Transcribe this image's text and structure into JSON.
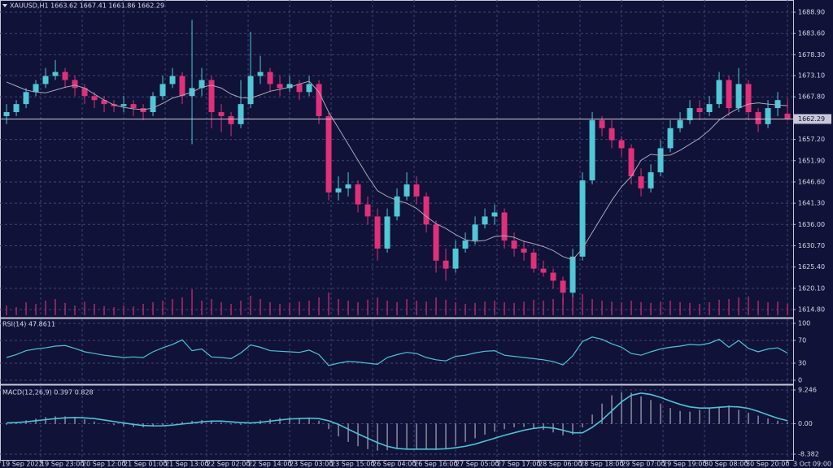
{
  "chart_data": [
    {
      "type": "candlestick",
      "title": "XAUUSD,H1  1663.62 1667.41 1661.86 1662.29",
      "up_color": "#52c7d6",
      "down_color": "#e0307a",
      "ma_color": "#a8a8b8",
      "volume_color": "#b0286a",
      "grid": true,
      "xlim": [
        -0.67,
        80.58
      ],
      "ylim": [
        1612.98,
        1691.94
      ],
      "vlim": [
        0,
        100
      ],
      "xticks": [
        {
          "value": -0.67,
          "label": "19 Sep 2022"
        },
        {
          "value": 3.5,
          "label": "19 Sep 23:00"
        },
        {
          "value": 7.75,
          "label": "20 Sep 12:00"
        },
        {
          "value": 12,
          "label": "21 Sep 01:00"
        },
        {
          "value": 16.25,
          "label": "21 Sep 13:00"
        },
        {
          "value": 20.5,
          "label": "22 Sep 02:00"
        },
        {
          "value": 24.75,
          "label": "22 Sep 14:00"
        },
        {
          "value": 29,
          "label": "23 Sep 03:00"
        },
        {
          "value": 33.25,
          "label": "23 Sep 15:00"
        },
        {
          "value": 37.5,
          "label": "26 Sep 04:00"
        },
        {
          "value": 41.75,
          "label": "26 Sep 16:00"
        },
        {
          "value": 46,
          "label": "27 Sep 05:00"
        },
        {
          "value": 50.25,
          "label": "27 Sep 17:00"
        },
        {
          "value": 54.5,
          "label": "28 Sep 06:00"
        },
        {
          "value": 58.75,
          "label": "28 Sep 18:00"
        },
        {
          "value": 63,
          "label": "29 Sep 07:00"
        },
        {
          "value": 67.25,
          "label": "29 Sep 19:00"
        },
        {
          "value": 71.5,
          "label": "30 Sep 08:00"
        },
        {
          "value": 75.75,
          "label": "30 Sep 20:00"
        },
        {
          "value": 80,
          "label": "3 Oct 09:00"
        }
      ],
      "yticks": [
        {
          "value": 1688.9,
          "label": "1688.90"
        },
        {
          "value": 1683.6,
          "label": "1683.60"
        },
        {
          "value": 1678.3,
          "label": "1678.30"
        },
        {
          "value": 1673.1,
          "label": "1673.10"
        },
        {
          "value": 1667.8,
          "label": "1667.80"
        },
        {
          "value": 1657.2,
          "label": "1657.20"
        },
        {
          "value": 1651.9,
          "label": "1651.90"
        },
        {
          "value": 1646.6,
          "label": "1646.60"
        },
        {
          "value": 1641.3,
          "label": "1641.30"
        },
        {
          "value": 1636,
          "label": "1636.00"
        },
        {
          "value": 1630.7,
          "label": "1630.70"
        },
        {
          "value": 1625.4,
          "label": "1625.40"
        },
        {
          "value": 1620.1,
          "label": "1620.10"
        },
        {
          "value": 1614.8,
          "label": "1614.80"
        }
      ],
      "candles": [
        [
          1663,
          1666,
          1661,
          1664
        ],
        [
          1664,
          1667,
          1663,
          1666
        ],
        [
          1666,
          1670,
          1665,
          1669
        ],
        [
          1669,
          1672,
          1668,
          1671
        ],
        [
          1671,
          1675,
          1670,
          1673
        ],
        [
          1673,
          1677,
          1672,
          1674
        ],
        [
          1674,
          1675,
          1670,
          1672
        ],
        [
          1672,
          1673,
          1668,
          1670
        ],
        [
          1670,
          1671,
          1666,
          1668
        ],
        [
          1668,
          1669,
          1665,
          1667
        ],
        [
          1667,
          1668,
          1664,
          1666
        ],
        [
          1666,
          1667,
          1664,
          1665.5
        ],
        [
          1665.5,
          1668,
          1664,
          1666
        ],
        [
          1666,
          1667,
          1663,
          1665
        ],
        [
          1665,
          1666,
          1662,
          1664
        ],
        [
          1664,
          1669,
          1663,
          1668
        ],
        [
          1668,
          1673,
          1667,
          1671
        ],
        [
          1671,
          1675,
          1670,
          1673
        ],
        [
          1673,
          1674,
          1666,
          1668
        ],
        [
          1668,
          1687,
          1656,
          1670
        ],
        [
          1670,
          1675,
          1668,
          1672
        ],
        [
          1672,
          1673,
          1660,
          1664
        ],
        [
          1664,
          1666,
          1659,
          1663
        ],
        [
          1663,
          1664,
          1658,
          1661
        ],
        [
          1661,
          1672,
          1660,
          1666
        ],
        [
          1666,
          1684,
          1665,
          1673
        ],
        [
          1673,
          1678,
          1671,
          1674
        ],
        [
          1674,
          1675,
          1669,
          1671
        ],
        [
          1671,
          1673,
          1668,
          1670
        ],
        [
          1670,
          1673,
          1669,
          1671
        ],
        [
          1671,
          1672,
          1667,
          1669
        ],
        [
          1669,
          1673,
          1668,
          1671
        ],
        [
          1671,
          1672,
          1661,
          1663
        ],
        [
          1663,
          1664,
          1642,
          1644
        ],
        [
          1644,
          1648,
          1642,
          1645
        ],
        [
          1645,
          1649,
          1643,
          1646
        ],
        [
          1646,
          1647,
          1639,
          1641
        ],
        [
          1641,
          1643,
          1636,
          1638
        ],
        [
          1638,
          1640,
          1627,
          1630
        ],
        [
          1630,
          1640,
          1629,
          1638
        ],
        [
          1638,
          1645,
          1637,
          1643
        ],
        [
          1643,
          1649,
          1642,
          1646
        ],
        [
          1646,
          1648,
          1641,
          1643
        ],
        [
          1643,
          1644,
          1634,
          1636
        ],
        [
          1636,
          1637,
          1624,
          1627
        ],
        [
          1627,
          1630,
          1622,
          1625
        ],
        [
          1625,
          1632,
          1624,
          1630
        ],
        [
          1630,
          1634,
          1629,
          1632
        ],
        [
          1632,
          1638,
          1631,
          1636
        ],
        [
          1636,
          1640,
          1635,
          1638
        ],
        [
          1638,
          1641,
          1636,
          1639
        ],
        [
          1639,
          1640,
          1630,
          1632
        ],
        [
          1632,
          1634,
          1628,
          1630
        ],
        [
          1630,
          1632,
          1627,
          1629
        ],
        [
          1629,
          1630,
          1624,
          1625
        ],
        [
          1625,
          1627,
          1623,
          1624
        ],
        [
          1624,
          1625,
          1620,
          1622
        ],
        [
          1622,
          1623,
          1616,
          1619
        ],
        [
          1619,
          1630,
          1618,
          1628
        ],
        [
          1628,
          1649,
          1627,
          1647
        ],
        [
          1647,
          1664,
          1646,
          1662
        ],
        [
          1662,
          1663,
          1658,
          1660
        ],
        [
          1660,
          1662,
          1655,
          1657
        ],
        [
          1657,
          1658,
          1653,
          1655
        ],
        [
          1655,
          1656,
          1646,
          1648
        ],
        [
          1648,
          1650,
          1643,
          1645
        ],
        [
          1645,
          1651,
          1644,
          1649
        ],
        [
          1649,
          1657,
          1648,
          1655
        ],
        [
          1655,
          1662,
          1654,
          1660
        ],
        [
          1660,
          1664,
          1659,
          1662
        ],
        [
          1662,
          1667,
          1661,
          1665
        ],
        [
          1665,
          1667,
          1662,
          1664
        ],
        [
          1664,
          1668,
          1663,
          1666
        ],
        [
          1666,
          1674,
          1665,
          1672
        ],
        [
          1672,
          1673,
          1663,
          1665
        ],
        [
          1665,
          1675,
          1664,
          1671
        ],
        [
          1671,
          1672,
          1662,
          1664
        ],
        [
          1664,
          1665,
          1659,
          1661
        ],
        [
          1661,
          1667,
          1660,
          1665
        ],
        [
          1665,
          1669,
          1663,
          1667
        ],
        [
          1663.62,
          1667.41,
          1661.86,
          1662.29
        ]
      ],
      "ma": [
        1671.5,
        1670.5,
        1669.5,
        1669,
        1668.8,
        1669.5,
        1670.2,
        1670.7,
        1670,
        1668.5,
        1667,
        1665.8,
        1665.2,
        1664.8,
        1664.6,
        1665,
        1666.2,
        1667.5,
        1668.2,
        1669,
        1670.2,
        1670.7,
        1670,
        1668.5,
        1667.6,
        1667.5,
        1668.3,
        1669.2,
        1669.7,
        1670.2,
        1671,
        1671.7,
        1669,
        1664,
        1660,
        1656,
        1652,
        1648,
        1644.4,
        1643,
        1642,
        1641.3,
        1640,
        1638,
        1636.2,
        1635,
        1633.5,
        1632.2,
        1631.8,
        1632,
        1633,
        1633.2,
        1632.8,
        1631.8,
        1631.2,
        1630.5,
        1629.5,
        1628,
        1627.2,
        1630,
        1634,
        1638,
        1642,
        1645.4,
        1648,
        1652,
        1653.5,
        1653.2,
        1653.3,
        1654.5,
        1656,
        1657.5,
        1659.5,
        1662,
        1663.6,
        1665,
        1666,
        1666.3,
        1666,
        1665.8,
        1665.6
      ],
      "volume": [
        30,
        25,
        40,
        35,
        45,
        50,
        38,
        30,
        42,
        35,
        28,
        25,
        30,
        27,
        35,
        40,
        45,
        50,
        55,
        80,
        45,
        50,
        40,
        35,
        45,
        60,
        50,
        40,
        35,
        38,
        42,
        45,
        55,
        70,
        50,
        45,
        40,
        48,
        55,
        45,
        40,
        50,
        45,
        42,
        55,
        48,
        40,
        35,
        38,
        42,
        45,
        40,
        38,
        42,
        48,
        45,
        50,
        55,
        60,
        65,
        50,
        45,
        42,
        40,
        45,
        40,
        38,
        42,
        45,
        40,
        38,
        35,
        40,
        48,
        50,
        55,
        58,
        45,
        40,
        42,
        35
      ]
    },
    {
      "type": "line",
      "title": "RSI(14) 47.8611",
      "color": "#4ec3d6",
      "ylim": [
        -5.7,
        107.1
      ],
      "yticks": [
        100,
        70,
        30,
        0
      ],
      "values": [
        40,
        45,
        52,
        55,
        57,
        60,
        61,
        56,
        50,
        47,
        44,
        42,
        40,
        41,
        40,
        50,
        57,
        63,
        71,
        52,
        55,
        41,
        40,
        38,
        48,
        62,
        58,
        52,
        51,
        50,
        49,
        53,
        45,
        26,
        30,
        33,
        32,
        30,
        28,
        40,
        45,
        49,
        47,
        40,
        36,
        34,
        42,
        44,
        48,
        51,
        52,
        44,
        42,
        40,
        38,
        36,
        33,
        27,
        43,
        68,
        76,
        72,
        64,
        58,
        47,
        44,
        50,
        55,
        58,
        60,
        63,
        62,
        65,
        72,
        58,
        70,
        56,
        50,
        55,
        57,
        47.8611
      ]
    },
    {
      "type": "macd",
      "title": "MACD(12,26,9) 0.397 0.828",
      "hist_color": "#c8c8d8",
      "signal_color": "#4ec3d6",
      "ylim": [
        -9.94,
        10.36
      ],
      "yticks": [
        9.246,
        {
          "value": 0,
          "label": "0.00"
        },
        -8.382
      ],
      "histogram": [
        -0.3,
        0.3,
        0.9,
        1.4,
        1.8,
        2.0,
        2.0,
        1.7,
        1.2,
        0.6,
        0,
        -0.4,
        -0.7,
        -0.9,
        -1.0,
        -0.8,
        -0.4,
        0.2,
        0.5,
        0.8,
        1.0,
        0.8,
        0.3,
        -0.2,
        -0.3,
        0.2,
        0.9,
        1.3,
        1.6,
        1.7,
        1.6,
        1.5,
        0.8,
        -1.5,
        -3.5,
        -5.0,
        -6.2,
        -7.0,
        -7.4,
        -7.3,
        -7.0,
        -6.8,
        -6.9,
        -7.0,
        -7.2,
        -6.8,
        -6.0,
        -5.0,
        -4.0,
        -3.0,
        -2.2,
        -1.5,
        -1.0,
        -0.9,
        -1.2,
        -1.7,
        -2.4,
        -3.2,
        -3.0,
        -1.0,
        2.5,
        5.5,
        7.8,
        8.6,
        8.5,
        7.5,
        6.5,
        5.5,
        4.3,
        3.5,
        3.3,
        3.8,
        4.2,
        4.7,
        5.0,
        3.8,
        3.0,
        2.2,
        1.4,
        0.8,
        0.397
      ],
      "signal": [
        0.2,
        0.3,
        0.5,
        0.8,
        1.1,
        1.4,
        1.6,
        1.7,
        1.6,
        1.4,
        1.0,
        0.6,
        0.2,
        -0.2,
        -0.5,
        -0.6,
        -0.6,
        -0.4,
        -0.1,
        0.2,
        0.5,
        0.7,
        0.7,
        0.5,
        0.3,
        0.2,
        0.4,
        0.7,
        1.0,
        1.3,
        1.4,
        1.5,
        1.4,
        0.8,
        -0.2,
        -1.5,
        -2.8,
        -4.0,
        -5.2,
        -6.2,
        -6.8,
        -7.0,
        -7.0,
        -7.0,
        -7.0,
        -6.9,
        -6.6,
        -6.2,
        -5.6,
        -4.8,
        -4.0,
        -3.2,
        -2.5,
        -1.8,
        -1.3,
        -1.0,
        -1.2,
        -1.8,
        -2.5,
        -2.5,
        -1.0,
        1.0,
        3.5,
        6.0,
        7.8,
        8.4,
        8.0,
        7.2,
        6.2,
        5.3,
        4.6,
        4.3,
        4.3,
        4.5,
        4.7,
        4.6,
        4.2,
        3.4,
        2.4,
        1.5,
        0.828
      ]
    }
  ]
}
